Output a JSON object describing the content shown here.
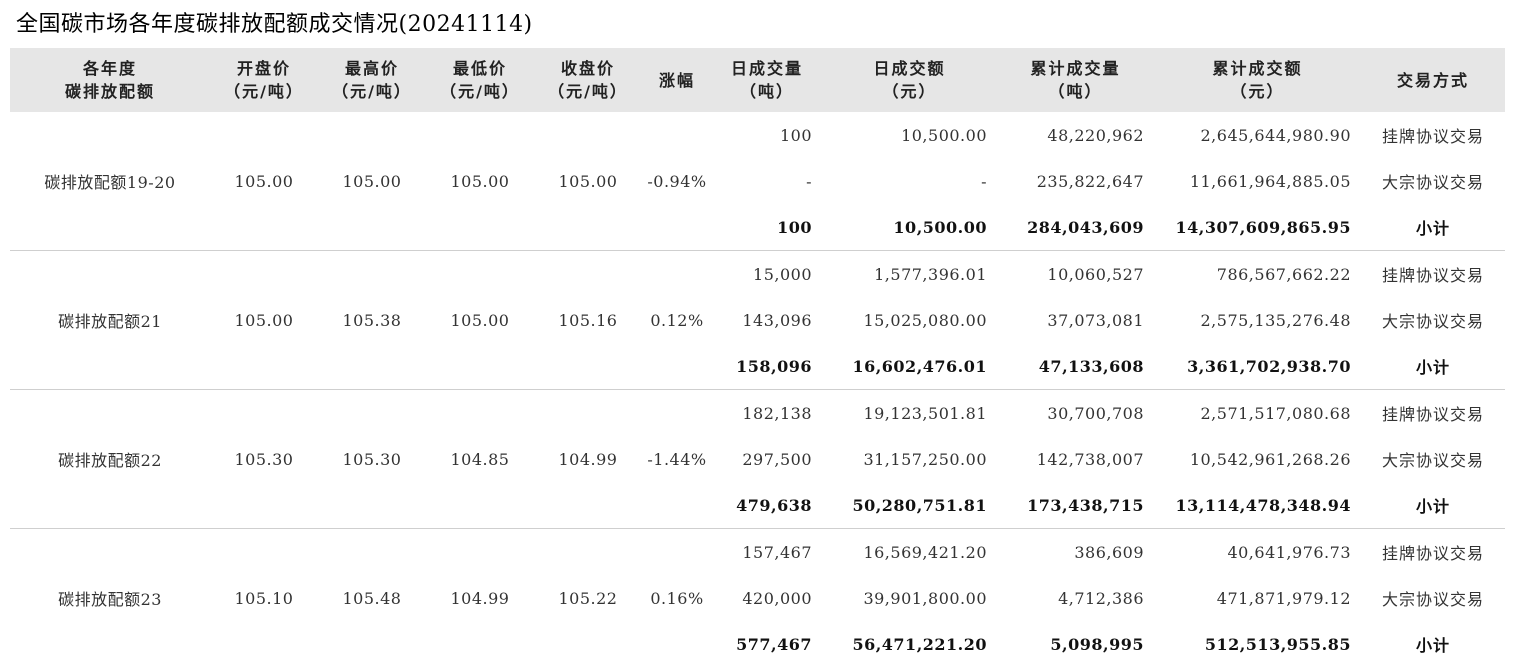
{
  "title": "全国碳市场各年度碳排放配额成交情况(20241114)",
  "table": {
    "headers": [
      [
        "各年度",
        "碳排放配额"
      ],
      [
        "开盘价",
        "（元/吨）"
      ],
      [
        "最高价",
        "（元/吨）"
      ],
      [
        "最低价",
        "（元/吨）"
      ],
      [
        "收盘价",
        "（元/吨）"
      ],
      [
        "涨幅"
      ],
      [
        "日成交量",
        "（吨）"
      ],
      [
        "日成交额",
        "（元）"
      ],
      [
        "累计成交量",
        "（吨）"
      ],
      [
        "累计成交额",
        "（元）"
      ],
      [
        "交易方式"
      ]
    ],
    "groups": [
      {
        "name": "碳排放配额19-20",
        "open": "105.00",
        "high": "105.00",
        "low": "105.00",
        "close": "105.00",
        "change": "-0.94%",
        "rows": [
          {
            "daily_volume": "100",
            "daily_amount": "10,500.00",
            "cum_volume": "48,220,962",
            "cum_amount": "2,645,644,980.90",
            "method": "挂牌协议交易"
          },
          {
            "daily_volume": "-",
            "daily_amount": "-",
            "cum_volume": "235,822,647",
            "cum_amount": "11,661,964,885.05",
            "method": "大宗协议交易"
          },
          {
            "daily_volume": "100",
            "daily_amount": "10,500.00",
            "cum_volume": "284,043,609",
            "cum_amount": "14,307,609,865.95",
            "method": "小计"
          }
        ]
      },
      {
        "name": "碳排放配额21",
        "open": "105.00",
        "high": "105.38",
        "low": "105.00",
        "close": "105.16",
        "change": "0.12%",
        "rows": [
          {
            "daily_volume": "15,000",
            "daily_amount": "1,577,396.01",
            "cum_volume": "10,060,527",
            "cum_amount": "786,567,662.22",
            "method": "挂牌协议交易"
          },
          {
            "daily_volume": "143,096",
            "daily_amount": "15,025,080.00",
            "cum_volume": "37,073,081",
            "cum_amount": "2,575,135,276.48",
            "method": "大宗协议交易"
          },
          {
            "daily_volume": "158,096",
            "daily_amount": "16,602,476.01",
            "cum_volume": "47,133,608",
            "cum_amount": "3,361,702,938.70",
            "method": "小计"
          }
        ]
      },
      {
        "name": "碳排放配额22",
        "open": "105.30",
        "high": "105.30",
        "low": "104.85",
        "close": "104.99",
        "change": "-1.44%",
        "rows": [
          {
            "daily_volume": "182,138",
            "daily_amount": "19,123,501.81",
            "cum_volume": "30,700,708",
            "cum_amount": "2,571,517,080.68",
            "method": "挂牌协议交易"
          },
          {
            "daily_volume": "297,500",
            "daily_amount": "31,157,250.00",
            "cum_volume": "142,738,007",
            "cum_amount": "10,542,961,268.26",
            "method": "大宗协议交易"
          },
          {
            "daily_volume": "479,638",
            "daily_amount": "50,280,751.81",
            "cum_volume": "173,438,715",
            "cum_amount": "13,114,478,348.94",
            "method": "小计"
          }
        ]
      },
      {
        "name": "碳排放配额23",
        "open": "105.10",
        "high": "105.48",
        "low": "104.99",
        "close": "105.22",
        "change": "0.16%",
        "rows": [
          {
            "daily_volume": "157,467",
            "daily_amount": "16,569,421.20",
            "cum_volume": "386,609",
            "cum_amount": "40,641,976.73",
            "method": "挂牌协议交易"
          },
          {
            "daily_volume": "420,000",
            "daily_amount": "39,901,800.00",
            "cum_volume": "4,712,386",
            "cum_amount": "471,871,979.12",
            "method": "大宗协议交易"
          },
          {
            "daily_volume": "577,467",
            "daily_amount": "56,471,221.20",
            "cum_volume": "5,098,995",
            "cum_amount": "512,513,955.85",
            "method": "小计"
          }
        ]
      }
    ]
  }
}
